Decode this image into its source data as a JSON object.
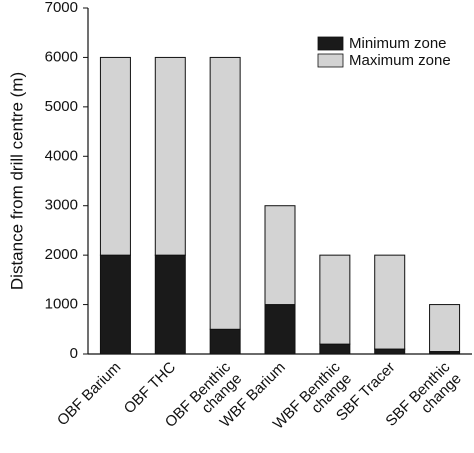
{
  "chart_data": {
    "type": "stacked_bar",
    "y_label": "Distance from drill centre (m)",
    "categories": [
      [
        "OBF Barium"
      ],
      [
        "OBF THC"
      ],
      [
        "OBF Benthic",
        "change"
      ],
      [
        "WBF Barium"
      ],
      [
        "WBF Benthic",
        "change"
      ],
      [
        "SBF Tracer"
      ],
      [
        "SBF Benthic",
        "change"
      ]
    ],
    "series": [
      {
        "name": "Minimum zone",
        "color": "#1a1a1a",
        "values": [
          2000,
          2000,
          500,
          1000,
          200,
          100,
          50
        ]
      },
      {
        "name": "Maximum zone",
        "color": "#d3d3d3",
        "values": [
          4000,
          4000,
          5500,
          2000,
          1800,
          1900,
          950
        ]
      }
    ],
    "ylim": [
      0,
      7000
    ],
    "yticks": [
      0,
      1000,
      2000,
      3000,
      4000,
      5000,
      6000,
      7000
    ],
    "legend": "upper right"
  }
}
